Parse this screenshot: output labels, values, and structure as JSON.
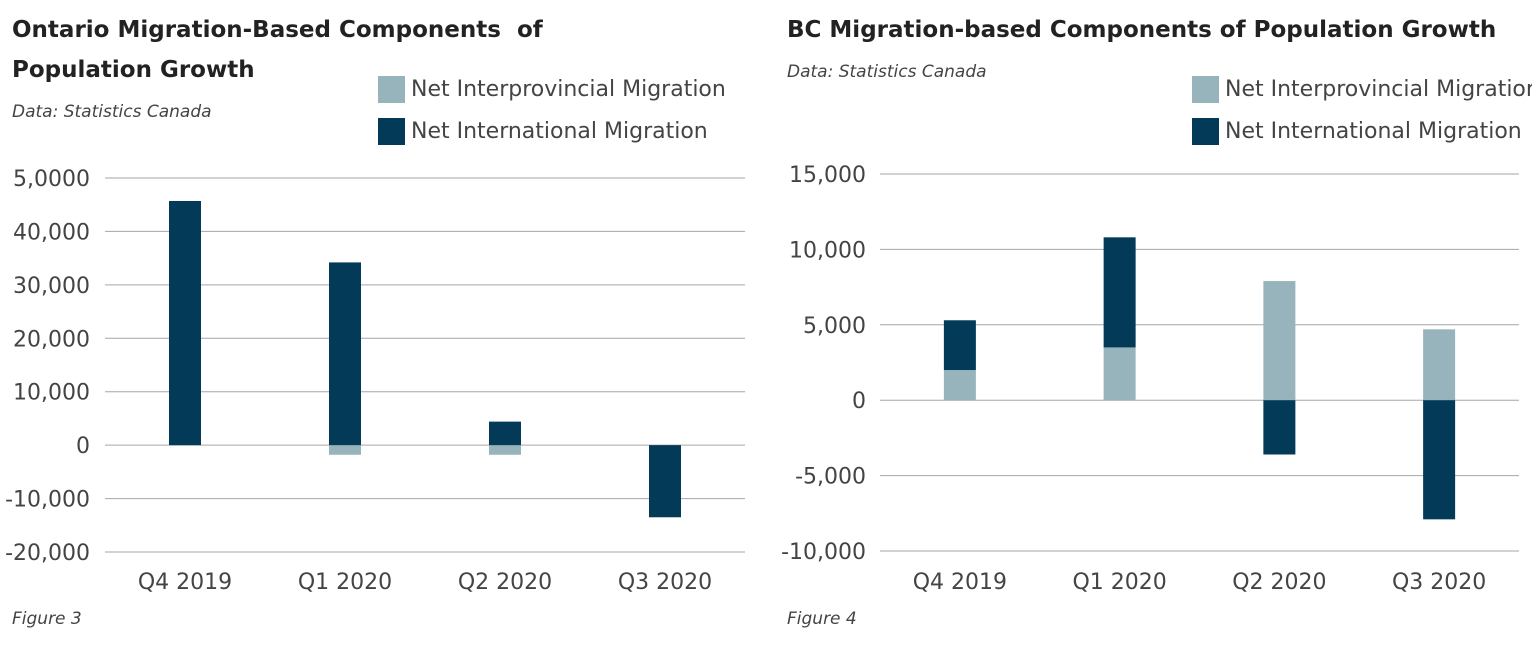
{
  "charts": [
    {
      "id": "ontario",
      "title": "Ontario Migration-Based Components  of Population Growth",
      "source": "Data: Statistics Canada",
      "figure_label": "Figure 3",
      "legend": [
        {
          "label": "Net Interprovincial Migration",
          "color": "#97b3bb"
        },
        {
          "label": "Net International Migration",
          "color": "#023a58"
        }
      ]
    },
    {
      "id": "bc",
      "title": "BC Migration-based Components of Population Growth",
      "source": "Data: Statistics Canada",
      "figure_label": "Figure 4",
      "legend": [
        {
          "label": "Net Interprovincial Migration",
          "color": "#97b3bb"
        },
        {
          "label": "Net International Migration",
          "color": "#023a58"
        }
      ]
    }
  ],
  "chart_data": [
    {
      "type": "bar",
      "stacked": true,
      "title": "Ontario Migration-Based Components  of Population Growth",
      "categories": [
        "Q4 2019",
        "Q1 2020",
        "Q2 2020",
        "Q3 2020"
      ],
      "series": [
        {
          "name": "Net Interprovincial Migration",
          "color": "#97b3bb",
          "values": [
            0,
            -1800,
            -1800,
            0
          ]
        },
        {
          "name": "Net International Migration",
          "color": "#023a58",
          "values": [
            45700,
            34200,
            4400,
            -13500
          ]
        }
      ],
      "ylim": [
        -20000,
        50000
      ],
      "yticks": [
        50000,
        40000,
        30000,
        20000,
        10000,
        0,
        -10000,
        -20000
      ],
      "ytick_labels": [
        "5,0000",
        "40,000",
        "30,000",
        "20,000",
        "10,000",
        "0",
        "-10,000",
        "-20,000"
      ],
      "grid": true,
      "legend_position": "top-right"
    },
    {
      "type": "bar",
      "stacked": true,
      "title": "BC Migration-based Components of Population Growth",
      "categories": [
        "Q4 2019",
        "Q1 2020",
        "Q2 2020",
        "Q3 2020"
      ],
      "series": [
        {
          "name": "Net Interprovincial Migration",
          "color": "#97b3bb",
          "values": [
            2000,
            3500,
            7900,
            4700
          ]
        },
        {
          "name": "Net International Migration",
          "color": "#023a58",
          "values": [
            3300,
            7300,
            -3600,
            -7900
          ]
        }
      ],
      "ylim": [
        -10000,
        15000
      ],
      "yticks": [
        15000,
        10000,
        5000,
        0,
        -5000,
        -10000
      ],
      "ytick_labels": [
        "15,000",
        "10,000",
        "5,000",
        "0",
        "-5,000",
        "-10,000"
      ],
      "grid": true,
      "legend_position": "top-right"
    }
  ]
}
